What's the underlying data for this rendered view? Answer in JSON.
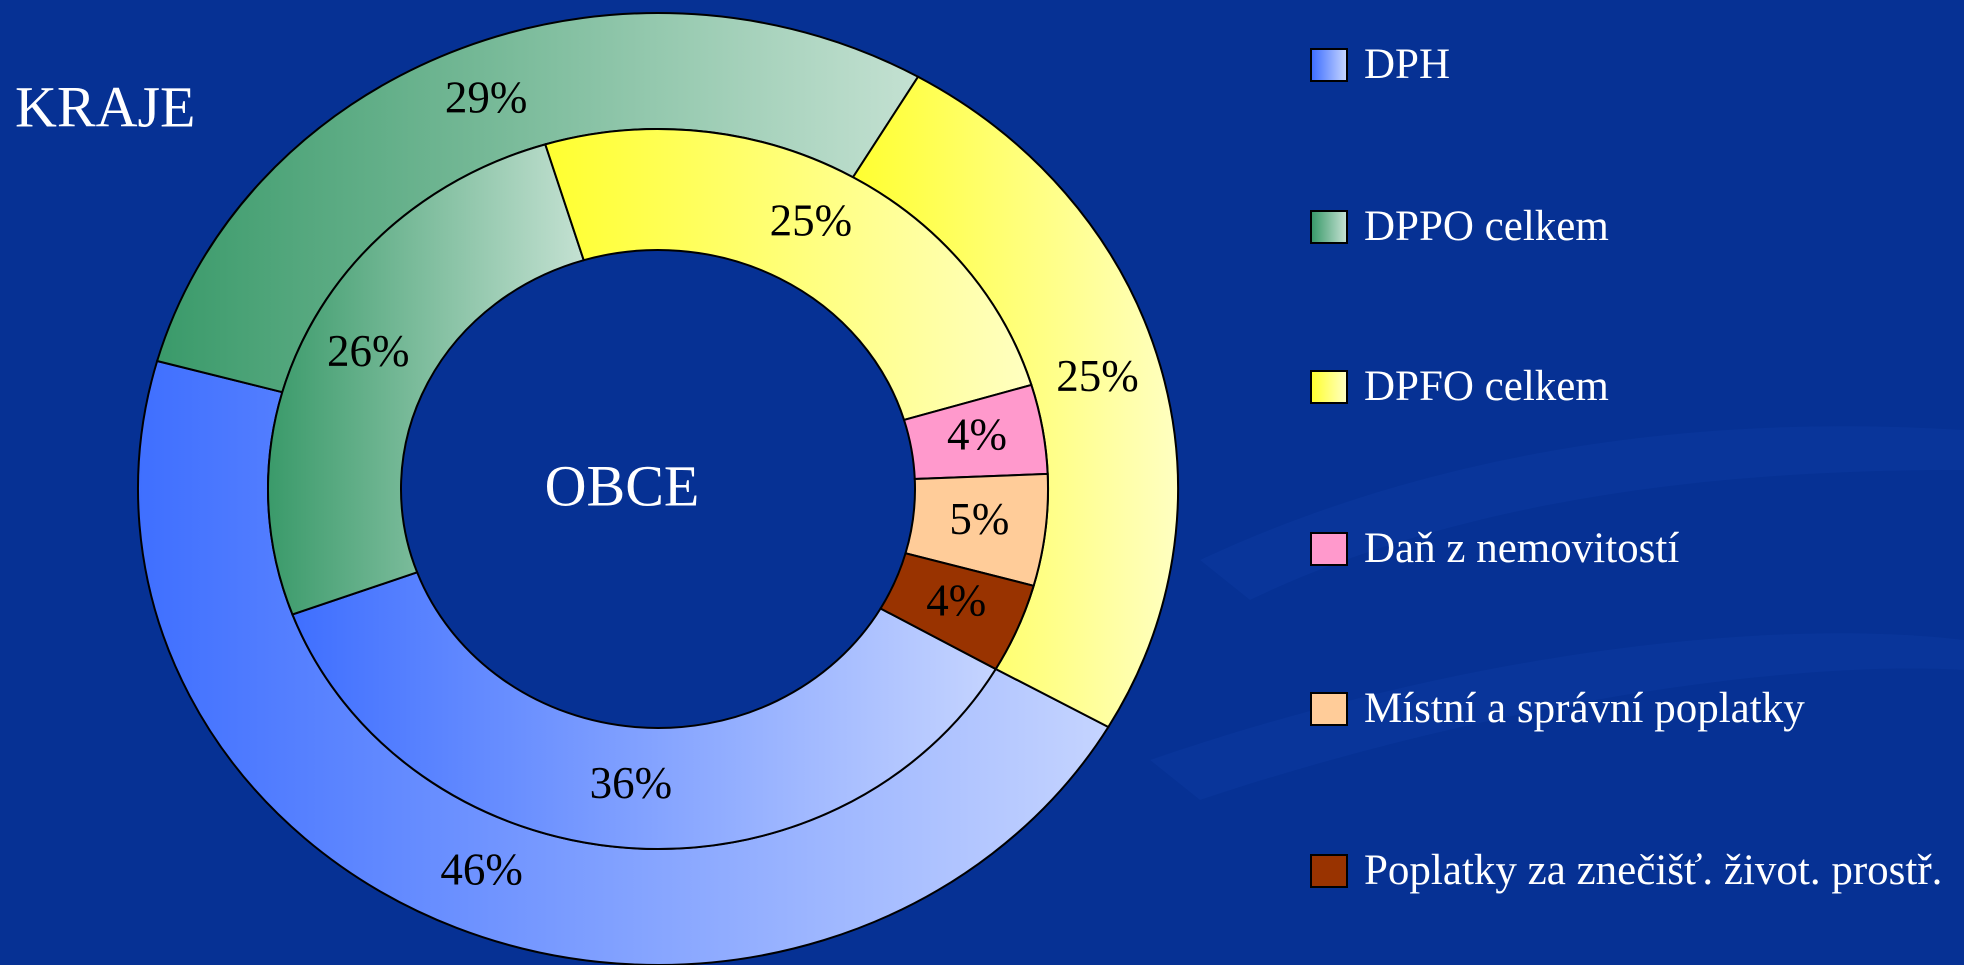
{
  "chart_data": {
    "type": "donut",
    "categories": [
      "DPH",
      "DPPO celkem",
      "DPFO celkem",
      "Daň z nemovitostí",
      "Místní a správní poplatky",
      "Poplatky za znečišť. život. prostř."
    ],
    "colors": [
      "#3f6fff",
      "#3a9a6a",
      "#ffff30",
      "#ff99cc",
      "#ffcc99",
      "#993300"
    ],
    "series": [
      {
        "name": "KRAJE",
        "values": [
          46,
          29,
          25,
          null,
          null,
          null
        ],
        "value_labels": [
          "46%",
          "29%",
          "25%",
          null,
          null,
          null
        ]
      },
      {
        "name": "OBCE",
        "values": [
          36,
          26,
          25,
          4,
          5,
          4
        ],
        "value_labels": [
          "36%",
          "26%",
          "25%",
          "4%",
          "5%",
          "4%"
        ]
      }
    ]
  }
}
